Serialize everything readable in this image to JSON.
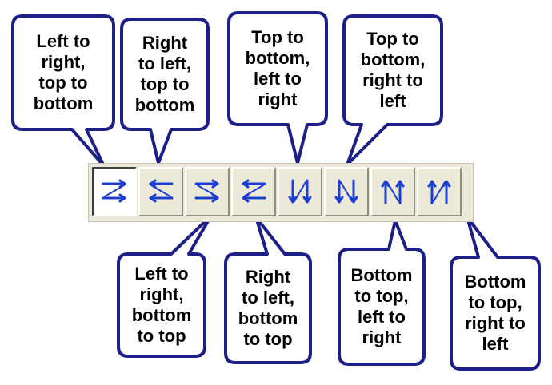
{
  "toolbar": {
    "buttons": [
      {
        "icon": "left-to-right-top-to-bottom-icon",
        "label": "Left to\nright,\ntop to\nbottom",
        "selected": true
      },
      {
        "icon": "right-to-left-top-to-bottom-icon",
        "label": "Right\nto left,\ntop to\nbottom",
        "selected": false
      },
      {
        "icon": "left-to-right-bottom-to-top-icon",
        "label": "Left to\nright,\nbottom\nto top",
        "selected": false
      },
      {
        "icon": "right-to-left-bottom-to-top-icon",
        "label": "Right\nto left,\nbottom\nto top",
        "selected": false
      },
      {
        "icon": "top-to-bottom-left-to-right-icon",
        "label": "Top to\nbottom,\nleft to\nright",
        "selected": false
      },
      {
        "icon": "top-to-bottom-right-to-left-icon",
        "label": "Top to\nbottom,\nright to\nleft",
        "selected": false
      },
      {
        "icon": "bottom-to-top-left-to-right-icon",
        "label": "Bottom\nto top,\nleft to\nright",
        "selected": false
      },
      {
        "icon": "bottom-to-top-right-to-left-icon",
        "label": "Bottom\nto top,\nright to\nleft",
        "selected": false
      }
    ]
  },
  "colors": {
    "callout_fill": "#ffffff",
    "callout_border": "#1b1f86",
    "arrow": "#1a3fd1",
    "toolbar_bg": "#ece9d8"
  }
}
